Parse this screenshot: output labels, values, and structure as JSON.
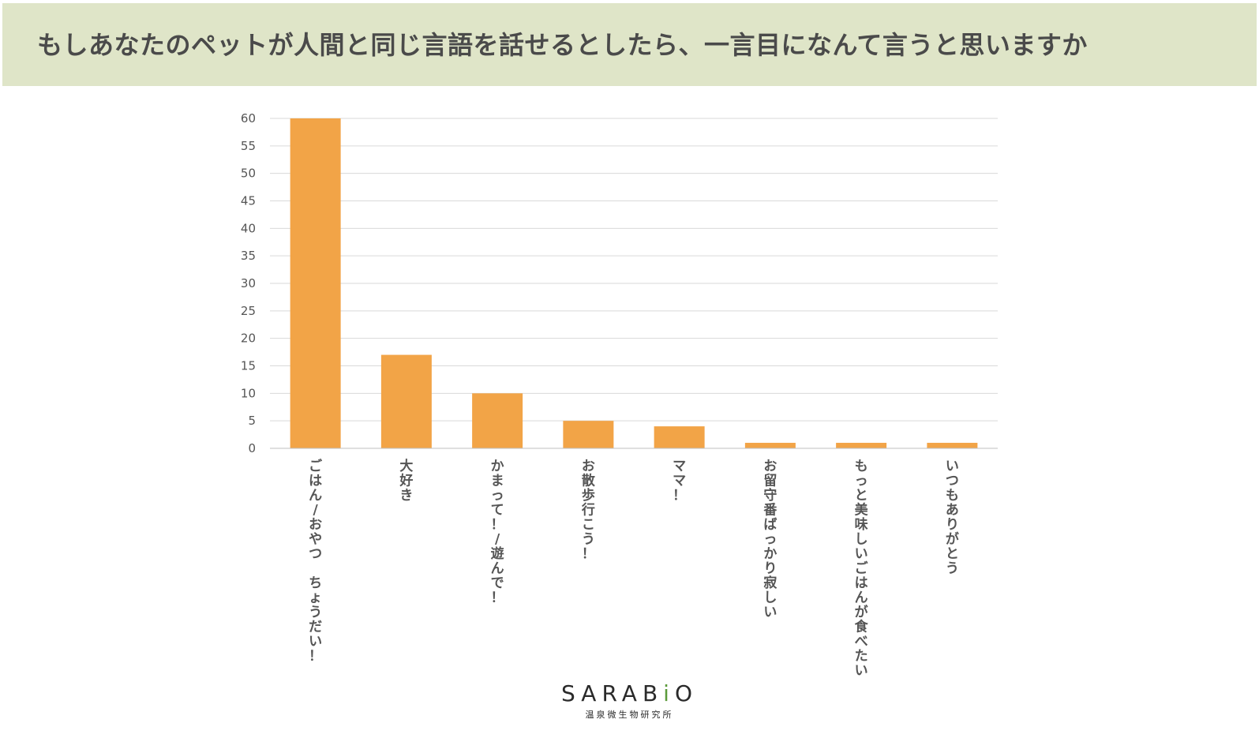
{
  "header": {
    "title": "もしあなたのペットが人間と同じ言語を話せるとしたら、一言目になんて言うと思いますか"
  },
  "chart_data": {
    "type": "bar",
    "categories": [
      "ごはん/おやつ ちょうだい！",
      "大好き",
      "かまって！/遊んで！",
      "お散歩行こう！",
      "ママ！",
      "お留守番ばっかり寂しい",
      "もっと美味しいごはんが食べたい",
      "いつもありがとう"
    ],
    "values": [
      60,
      17,
      10,
      5,
      4,
      1,
      1,
      1
    ],
    "ylim": [
      0,
      60
    ],
    "yticks": [
      0,
      5,
      10,
      15,
      20,
      25,
      30,
      35,
      40,
      45,
      50,
      55,
      60
    ],
    "grid": true,
    "bar_color": "#f2a447",
    "grid_color": "#d9d9d9"
  },
  "logo": {
    "text_pre": "SARAB",
    "text_accent": "i",
    "text_post": "O",
    "subtitle": "温泉微生物研究所",
    "accent_color": "#5b9a3a"
  }
}
